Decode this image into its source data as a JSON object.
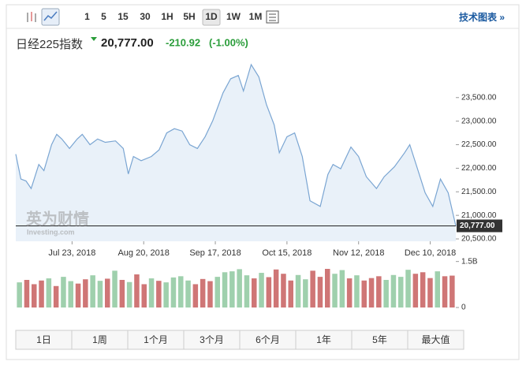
{
  "toolbar": {
    "intervals": [
      "1",
      "5",
      "15",
      "30",
      "1H",
      "5H",
      "1D",
      "1W",
      "1M"
    ],
    "link": "技术图表 »"
  },
  "quote": {
    "name": "日经225指数",
    "price": "20,777.00",
    "change": "-210.92",
    "change_pct": "(-1.00%)"
  },
  "watermark": [
    "英为财情",
    "Investing.com"
  ],
  "ranges": [
    "1日",
    "1周",
    "1个月",
    "3个月",
    "6个月",
    "1年",
    "5年",
    "最大值"
  ],
  "chart_data": [
    {
      "type": "area",
      "color": "#7aa5d2",
      "fill": "#e3edf8",
      "x": [
        "2018-07-01",
        "2018-07-03",
        "2018-07-05",
        "2018-07-07",
        "2018-07-10",
        "2018-07-12",
        "2018-07-15",
        "2018-07-17",
        "2018-07-19",
        "2018-07-22",
        "2018-07-25",
        "2018-07-27",
        "2018-07-30",
        "2018-08-02",
        "2018-08-05",
        "2018-08-09",
        "2018-08-12",
        "2018-08-14",
        "2018-08-16",
        "2018-08-19",
        "2018-08-23",
        "2018-08-26",
        "2018-08-29",
        "2018-09-01",
        "2018-09-04",
        "2018-09-07",
        "2018-09-10",
        "2018-09-13",
        "2018-09-16",
        "2018-09-20",
        "2018-09-23",
        "2018-09-26",
        "2018-09-28",
        "2018-10-01",
        "2018-10-04",
        "2018-10-07",
        "2018-10-10",
        "2018-10-12",
        "2018-10-15",
        "2018-10-18",
        "2018-10-21",
        "2018-10-24",
        "2018-10-28",
        "2018-10-31",
        "2018-11-02",
        "2018-11-05",
        "2018-11-09",
        "2018-11-12",
        "2018-11-15",
        "2018-11-19",
        "2018-11-22",
        "2018-11-26",
        "2018-11-30",
        "2018-12-02",
        "2018-12-06",
        "2018-12-08",
        "2018-12-11",
        "2018-12-14",
        "2018-12-17",
        "2018-12-20"
      ],
      "values": [
        22300,
        21770,
        21730,
        21570,
        22080,
        21950,
        22500,
        22720,
        22620,
        22420,
        22620,
        22720,
        22500,
        22620,
        22550,
        22580,
        22420,
        21880,
        22250,
        22160,
        22250,
        22390,
        22750,
        22840,
        22790,
        22500,
        22420,
        22670,
        23010,
        23600,
        23900,
        23970,
        23640,
        24200,
        23940,
        23350,
        22920,
        22330,
        22670,
        22750,
        22250,
        21310,
        21190,
        21870,
        22080,
        21990,
        22450,
        22250,
        21820,
        21570,
        21820,
        22030,
        22330,
        22500,
        21820,
        21480,
        21190,
        21770,
        21480,
        20777
      ],
      "xlim": [
        "2018-07-01",
        "2018-12-20"
      ],
      "xticks": [
        {
          "value": "2018-07-23",
          "label": "Jul 23, 2018"
        },
        {
          "value": "2018-08-20",
          "label": "Aug 20, 2018"
        },
        {
          "value": "2018-09-17",
          "label": "Sep 17, 2018"
        },
        {
          "value": "2018-10-15",
          "label": "Oct 15, 2018"
        },
        {
          "value": "2018-11-12",
          "label": "Nov 12, 2018"
        },
        {
          "value": "2018-12-10",
          "label": "Dec 10, 2018"
        }
      ],
      "ylim": [
        20450,
        24400
      ],
      "yticks": [
        {
          "value": 20500,
          "label": "20,500.00"
        },
        {
          "value": 21000,
          "label": "21,000.00"
        },
        {
          "value": 21500,
          "label": "21,500.00"
        },
        {
          "value": 22000,
          "label": "22,000.00"
        },
        {
          "value": 22500,
          "label": "22,500.00"
        },
        {
          "value": 23000,
          "label": "23,000.00"
        },
        {
          "value": 23500,
          "label": "23,500.00"
        }
      ],
      "last_price": {
        "value": 20777,
        "label": "20,777.00"
      }
    },
    {
      "type": "bar",
      "up_color": "#9fd0ad",
      "down_color": "#cf7676",
      "values": [
        820000000,
        900000000,
        760000000,
        880000000,
        950000000,
        700000000,
        1000000000,
        860000000,
        780000000,
        920000000,
        1050000000,
        870000000,
        940000000,
        1200000000,
        900000000,
        830000000,
        1080000000,
        760000000,
        950000000,
        870000000,
        820000000,
        980000000,
        1020000000,
        880000000,
        760000000,
        930000000,
        860000000,
        1000000000,
        1150000000,
        1180000000,
        1250000000,
        1050000000,
        950000000,
        1130000000,
        990000000,
        1240000000,
        1100000000,
        880000000,
        1060000000,
        920000000,
        1200000000,
        1000000000,
        1260000000,
        1100000000,
        1220000000,
        950000000,
        1050000000,
        880000000,
        960000000,
        1020000000,
        900000000,
        1060000000,
        1000000000,
        1230000000,
        1100000000,
        1150000000,
        960000000,
        1180000000,
        1020000000,
        1040000000
      ],
      "ylim": [
        0,
        1800000000
      ],
      "yticks": [
        0,
        {
          "value": 1500000000,
          "label": "1.5B"
        }
      ]
    }
  ]
}
